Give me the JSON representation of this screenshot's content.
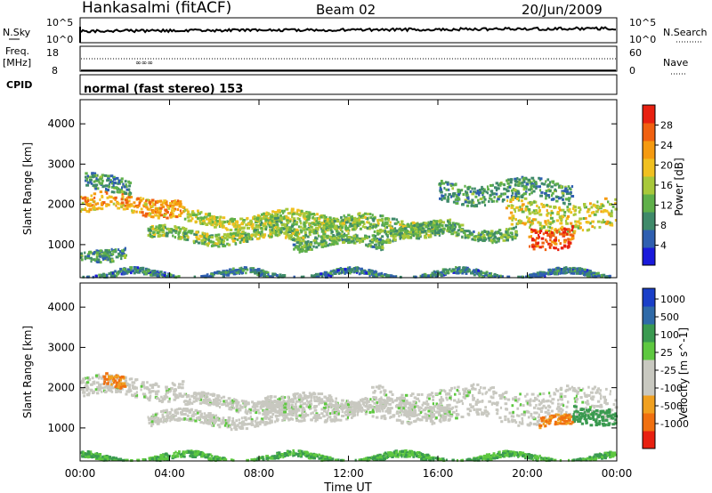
{
  "header": {
    "station": "Hankasalmi (fitACF)",
    "beam": "Beam 02",
    "date": "20/Jun/2009"
  },
  "strip": {
    "nsky_label": "N.Sky",
    "nsky_scale_top": "10^5",
    "nsky_scale_bottom": "10^0",
    "nsearch_label": "N.Search",
    "nsearch_scale_top": "10^5",
    "nsearch_scale_bottom": "10^0",
    "freq_label": "Freq.",
    "freq_unit": "[MHz]",
    "freq_ticks": [
      "18",
      "8"
    ],
    "nave_label": "Nave",
    "nave_ticks": [
      "60",
      "0"
    ],
    "cpid_label": "CPID",
    "cpid_text": "normal (fast stereo) 153"
  },
  "chart_data": [
    {
      "type": "heatmap",
      "panel": "power",
      "ylabel": "Slant Range [km]",
      "yticks": [
        1000,
        2000,
        3000,
        4000
      ],
      "ylim": [
        180,
        4600
      ],
      "xticks": [
        "00:00",
        "04:00",
        "08:00",
        "12:00",
        "16:00",
        "20:00",
        "00:00"
      ],
      "xlim_hours": [
        0,
        24
      ],
      "colorbar": {
        "label": "Power [dB]",
        "ticks": [
          "4",
          "8",
          "12",
          "16",
          "20",
          "24",
          "28"
        ],
        "colors": [
          "#1a1adb",
          "#2f5fb0",
          "#3f8a6a",
          "#5fb04a",
          "#a8c83a",
          "#f0c020",
          "#f59a10",
          "#f06010",
          "#e82010"
        ]
      },
      "echo_bands": [
        {
          "t0": 0.0,
          "t1": 4.6,
          "r0": 1800,
          "r1": 2250,
          "level": 20
        },
        {
          "t0": 0.2,
          "t1": 2.2,
          "r0": 2300,
          "r1": 2700,
          "level": 8
        },
        {
          "t0": 4.6,
          "t1": 12.5,
          "r0": 1500,
          "r1": 1800,
          "level": 14
        },
        {
          "t0": 3.0,
          "t1": 10.0,
          "r0": 1100,
          "r1": 1400,
          "level": 12
        },
        {
          "t0": 8.0,
          "t1": 16.5,
          "r0": 1300,
          "r1": 1700,
          "level": 12
        },
        {
          "t0": 9.5,
          "t1": 13.5,
          "r0": 950,
          "r1": 1200,
          "level": 10
        },
        {
          "t0": 13.0,
          "t1": 19.5,
          "r0": 1200,
          "r1": 1500,
          "level": 10
        },
        {
          "t0": 16.0,
          "t1": 22.0,
          "r0": 2100,
          "r1": 2600,
          "level": 8
        },
        {
          "t0": 19.0,
          "t1": 24.0,
          "r0": 1400,
          "r1": 2100,
          "level": 16
        },
        {
          "t0": 20.0,
          "t1": 22.0,
          "r0": 1000,
          "r1": 1500,
          "level": 26
        },
        {
          "t0": 0.0,
          "t1": 2.0,
          "r0": 700,
          "r1": 1000,
          "level": 8
        },
        {
          "t0": 0.0,
          "t1": 24.0,
          "r0": 200,
          "r1": 350,
          "level": 6
        }
      ]
    },
    {
      "type": "heatmap",
      "panel": "velocity",
      "ylabel": "Slant Range [km]",
      "yticks": [
        1000,
        2000,
        3000,
        4000
      ],
      "ylim": [
        180,
        4600
      ],
      "xticks": [
        "00:00",
        "04:00",
        "08:00",
        "12:00",
        "16:00",
        "20:00",
        "00:00"
      ],
      "xlabel": "Time UT",
      "xlim_hours": [
        0,
        24
      ],
      "colorbar": {
        "label": "Velocity [m s^-1]",
        "ticks": [
          "1000",
          "500",
          "100",
          "25",
          "-25",
          "-100",
          "-500",
          "-1000"
        ],
        "colors": [
          "#1a3fc8",
          "#2f6aa8",
          "#3a9a50",
          "#5ec840",
          "#c8c8c0",
          "#c8c8c0",
          "#f0a020",
          "#f07010",
          "#e82010"
        ]
      },
      "echo_bands": [
        {
          "t0": 0.0,
          "t1": 4.6,
          "r0": 1800,
          "r1": 2250,
          "level": 0
        },
        {
          "t0": 4.6,
          "t1": 12.5,
          "r0": 1500,
          "r1": 1800,
          "level": 0
        },
        {
          "t0": 3.0,
          "t1": 10.0,
          "r0": 1100,
          "r1": 1400,
          "level": 0
        },
        {
          "t0": 8.0,
          "t1": 16.5,
          "r0": 1300,
          "r1": 1700,
          "level": 0
        },
        {
          "t0": 13.0,
          "t1": 24.0,
          "r0": 1200,
          "r1": 2000,
          "level": 0
        },
        {
          "t0": 20.5,
          "t1": 22.0,
          "r0": 1000,
          "r1": 1250,
          "level": -300
        },
        {
          "t0": 22.0,
          "t1": 24.0,
          "r0": 1200,
          "r1": 1600,
          "level": 150
        },
        {
          "t0": 1.0,
          "t1": 2.0,
          "r0": 2000,
          "r1": 2300,
          "level": -300
        },
        {
          "t0": 0.0,
          "t1": 24.0,
          "r0": 200,
          "r1": 350,
          "level": 60
        }
      ]
    }
  ]
}
